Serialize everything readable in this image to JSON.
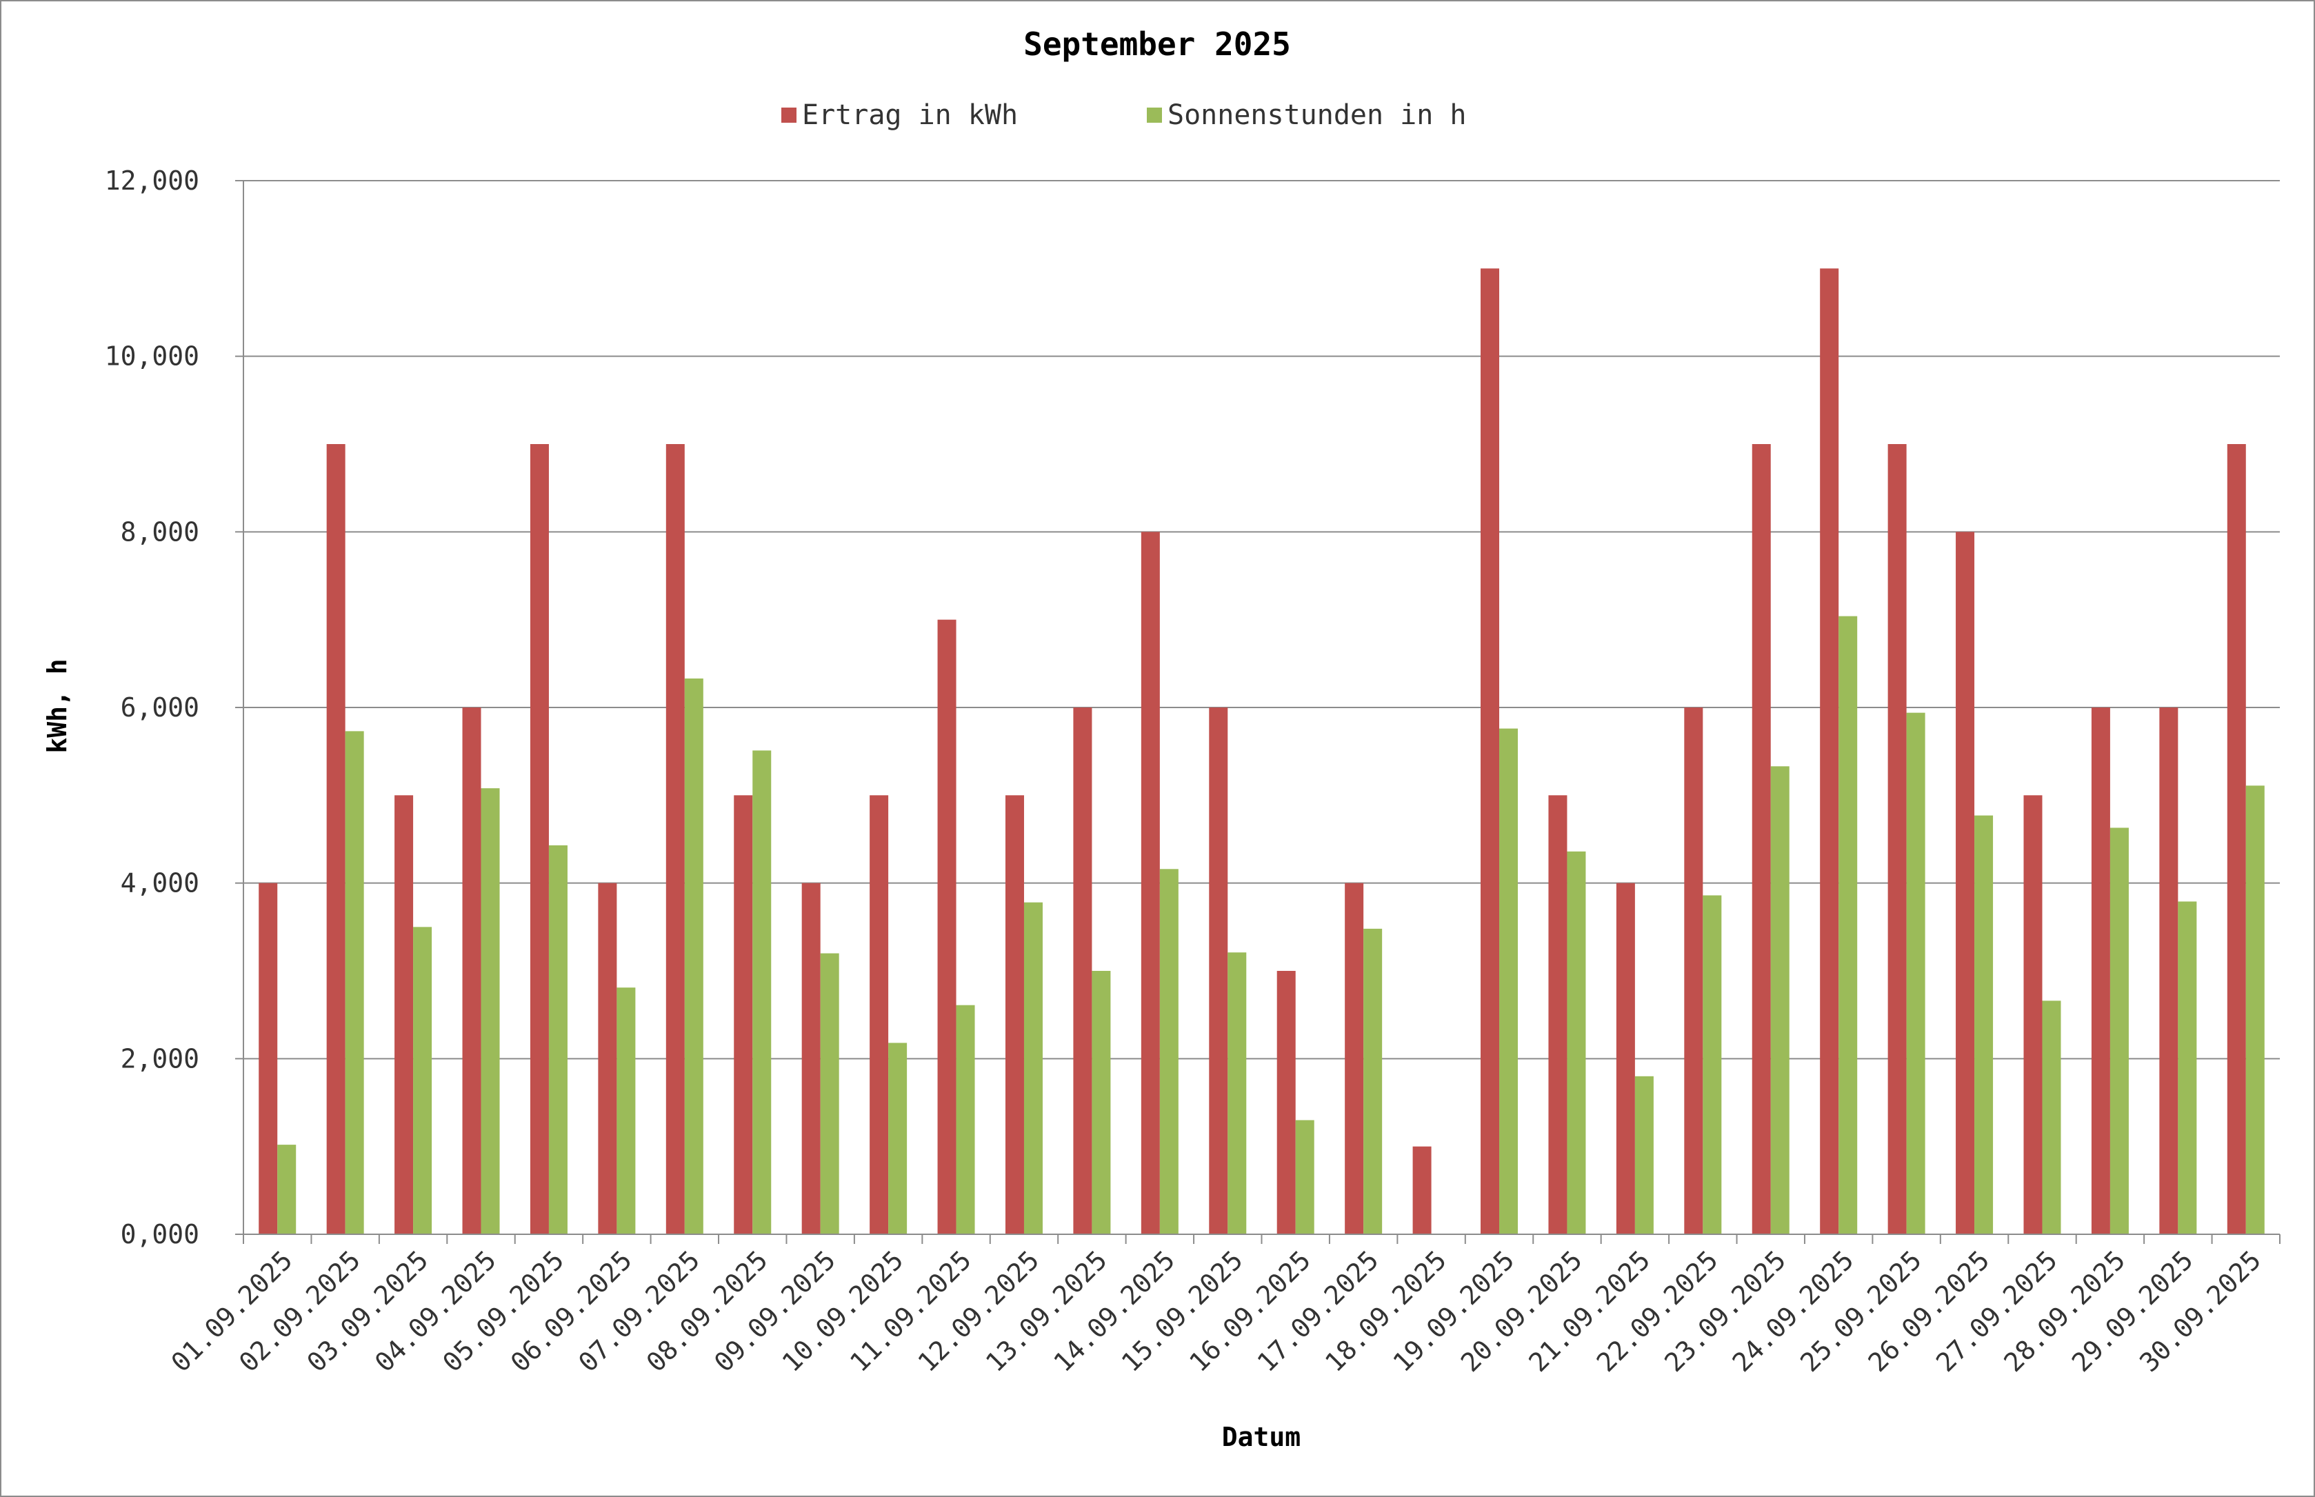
{
  "chart_data": {
    "type": "bar",
    "title": "September 2025",
    "xlabel": "Datum",
    "ylabel": "kWh, h",
    "ylim": [
      0,
      12
    ],
    "yticks": [
      0,
      2,
      4,
      6,
      8,
      10,
      12
    ],
    "ytick_labels": [
      "0,000",
      "2,000",
      "4,000",
      "6,000",
      "8,000",
      "10,000",
      "12,000"
    ],
    "grid": true,
    "legend_position": "top",
    "categories": [
      "01.09.2025",
      "02.09.2025",
      "03.09.2025",
      "04.09.2025",
      "05.09.2025",
      "06.09.2025",
      "07.09.2025",
      "08.09.2025",
      "09.09.2025",
      "10.09.2025",
      "11.09.2025",
      "12.09.2025",
      "13.09.2025",
      "14.09.2025",
      "15.09.2025",
      "16.09.2025",
      "17.09.2025",
      "18.09.2025",
      "19.09.2025",
      "20.09.2025",
      "21.09.2025",
      "22.09.2025",
      "23.09.2025",
      "24.09.2025",
      "25.09.2025",
      "26.09.2025",
      "27.09.2025",
      "28.09.2025",
      "29.09.2025",
      "30.09.2025"
    ],
    "series": [
      {
        "name": "Ertrag in kWh",
        "color": "#c0504d",
        "values": [
          4,
          9,
          5,
          6,
          9,
          4,
          9,
          5,
          4,
          5,
          7,
          5,
          6,
          8,
          6,
          3,
          4,
          1,
          11,
          5,
          4,
          6,
          9,
          11,
          9,
          8,
          5,
          6,
          6,
          9
        ]
      },
      {
        "name": "Sonnenstunden in h",
        "color": "#9bbb59",
        "values": [
          1.02,
          5.73,
          3.5,
          5.08,
          4.43,
          2.81,
          6.33,
          5.51,
          3.2,
          2.18,
          2.61,
          3.78,
          3.0,
          4.16,
          3.21,
          1.3,
          3.48,
          0,
          5.76,
          4.36,
          1.8,
          3.86,
          5.33,
          7.04,
          5.94,
          4.77,
          2.66,
          4.63,
          3.79,
          5.11
        ]
      }
    ]
  },
  "colors": {
    "gridline": "#8c8c8c",
    "axis": "#8c8c8c",
    "frame": "#8c8c8c"
  }
}
